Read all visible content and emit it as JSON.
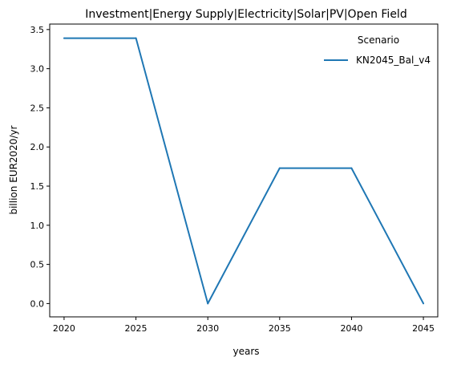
{
  "chart_data": {
    "type": "line",
    "title": "Investment|Energy Supply|Electricity|Solar|PV|Open Field",
    "xlabel": "years",
    "ylabel": "billion EUR2020/yr",
    "x": [
      2020,
      2025,
      2030,
      2035,
      2040,
      2045
    ],
    "xticks": [
      2020,
      2025,
      2030,
      2035,
      2040,
      2045
    ],
    "yticks": [
      0.0,
      0.5,
      1.0,
      1.5,
      2.0,
      2.5,
      3.0,
      3.5
    ],
    "ytick_labels": [
      "0.0",
      "0.5",
      "1.0",
      "1.5",
      "2.0",
      "2.5",
      "3.0",
      "3.5"
    ],
    "xlim": [
      2019.0,
      2046.0
    ],
    "ylim": [
      -0.17,
      3.57
    ],
    "grid": false,
    "legend": {
      "title": "Scenario",
      "position": "top-right"
    },
    "series": [
      {
        "name": "KN2045_Bal_v4",
        "color": "#1f77b4",
        "values": [
          3.39,
          3.39,
          0.0,
          1.73,
          1.73,
          0.0
        ]
      }
    ]
  }
}
